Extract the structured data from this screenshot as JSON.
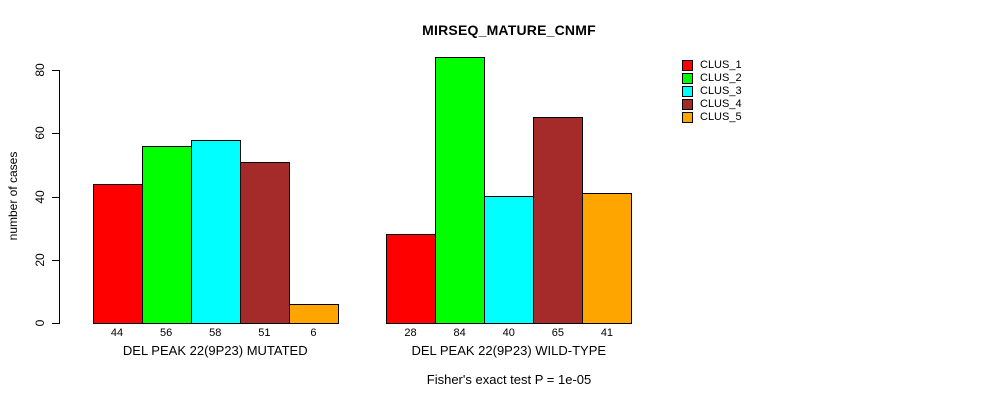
{
  "chart_data": {
    "type": "bar",
    "title": "MIRSEQ_MATURE_CNMF",
    "ylabel": "number of cases",
    "ylim": [
      0,
      84
    ],
    "yticks": [
      0,
      20,
      40,
      60,
      80
    ],
    "grid": false,
    "legend_position": "top-right",
    "background_color": "#FFFFFF",
    "axis_color": "#000000",
    "clusters": [
      {
        "name": "CLUS_1",
        "color": "#FF0000"
      },
      {
        "name": "CLUS_2",
        "color": "#00FF00"
      },
      {
        "name": "CLUS_3",
        "color": "#00FFFF"
      },
      {
        "name": "CLUS_4",
        "color": "#A52A2A"
      },
      {
        "name": "CLUS_5",
        "color": "#FFA500"
      }
    ],
    "groups": [
      {
        "label": "DEL PEAK 22(9P23) MUTATED",
        "values": [
          44,
          56,
          58,
          51,
          6
        ]
      },
      {
        "label": "DEL PEAK 22(9P23) WILD-TYPE",
        "values": [
          28,
          84,
          40,
          65,
          41
        ]
      }
    ],
    "footnote": "Fisher's exact test P = 1e-05"
  }
}
